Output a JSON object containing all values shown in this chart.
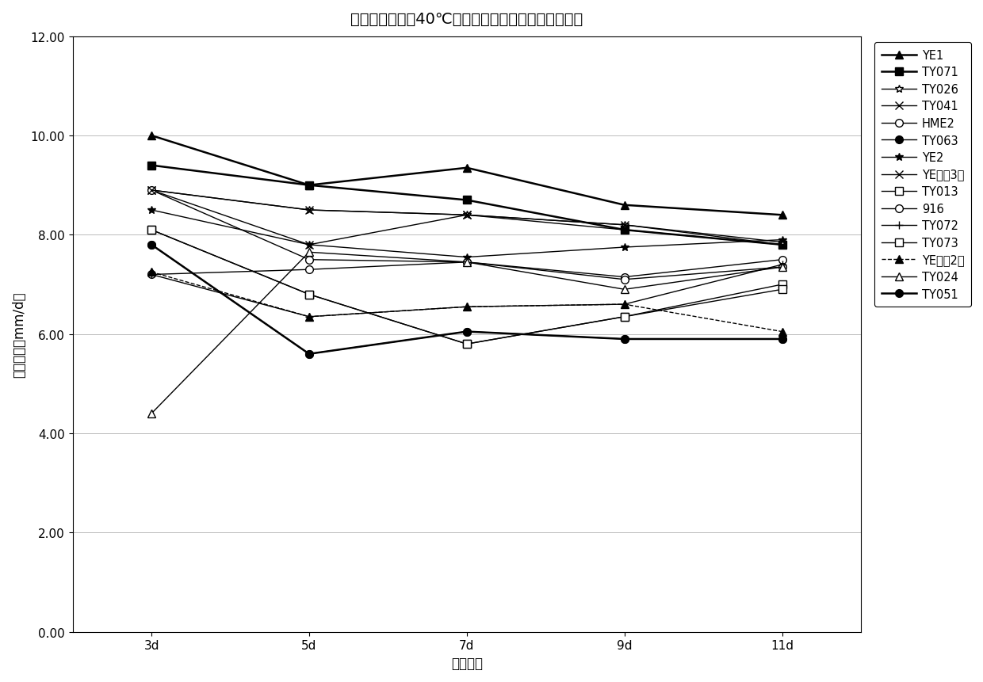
{
  "title": "不同云耳菌株在40℃下不同培养时间后恢复生长速度",
  "xlabel": "培养时间",
  "ylabel": "生长速度（mm/d）",
  "x_labels": [
    "3d",
    "5d",
    "7d",
    "9d",
    "11d"
  ],
  "x_values": [
    0,
    1,
    2,
    3,
    4
  ],
  "ylim": [
    0.0,
    12.0
  ],
  "yticks": [
    0.0,
    2.0,
    4.0,
    6.0,
    8.0,
    10.0,
    12.0
  ],
  "series": [
    {
      "name": "YE1",
      "values": [
        10.0,
        9.0,
        9.35,
        8.6,
        8.4
      ],
      "linestyle": "-",
      "marker": "^",
      "filled": true,
      "linewidth": 1.8
    },
    {
      "name": "TY071",
      "values": [
        9.4,
        9.0,
        8.7,
        8.1,
        7.8
      ],
      "linestyle": "-",
      "marker": "s",
      "filled": true,
      "linewidth": 1.8
    },
    {
      "name": "TY026",
      "values": [
        8.9,
        8.5,
        8.4,
        8.2,
        7.85
      ],
      "linestyle": "-",
      "marker": "*",
      "filled": false,
      "linewidth": 1.0
    },
    {
      "name": "TY041",
      "values": [
        8.9,
        7.8,
        8.4,
        8.2,
        7.8
      ],
      "linestyle": "-",
      "marker": "x",
      "filled": false,
      "linewidth": 1.0
    },
    {
      "name": "HME2",
      "values": [
        8.9,
        7.5,
        7.45,
        7.15,
        7.5
      ],
      "linestyle": "-",
      "marker": "o",
      "filled": false,
      "linewidth": 1.0
    },
    {
      "name": "TY063",
      "values": [
        7.8,
        5.6,
        6.05,
        5.9,
        5.9
      ],
      "linestyle": "-",
      "marker": "o",
      "filled": true,
      "linewidth": 1.0
    },
    {
      "name": "YE2",
      "values": [
        8.5,
        7.8,
        7.55,
        7.75,
        7.9
      ],
      "linestyle": "-",
      "marker": "*",
      "filled": true,
      "linewidth": 1.0
    },
    {
      "name": "YE（天3）",
      "values": [
        8.9,
        8.5,
        8.4,
        8.1,
        7.8
      ],
      "linestyle": "-",
      "marker": "x",
      "filled": false,
      "linewidth": 1.0
    },
    {
      "name": "TY013",
      "values": [
        8.1,
        6.8,
        5.8,
        6.35,
        7.0
      ],
      "linestyle": "-",
      "marker": "s",
      "filled": false,
      "linewidth": 1.0
    },
    {
      "name": "916",
      "values": [
        7.2,
        7.3,
        7.45,
        7.1,
        7.35
      ],
      "linestyle": "-",
      "marker": "o",
      "filled": false,
      "linewidth": 1.0
    },
    {
      "name": "TY072",
      "values": [
        7.2,
        6.35,
        6.55,
        6.6,
        7.4
      ],
      "linestyle": "-",
      "marker": "+",
      "filled": false,
      "linewidth": 1.0
    },
    {
      "name": "TY073",
      "values": [
        8.1,
        6.8,
        5.8,
        6.35,
        6.9
      ],
      "linestyle": "-",
      "marker": "s",
      "filled": false,
      "linewidth": 1.0
    },
    {
      "name": "YE（天2）",
      "values": [
        7.25,
        6.35,
        6.55,
        6.6,
        6.05
      ],
      "linestyle": "--",
      "marker": "^",
      "filled": true,
      "linewidth": 1.0
    },
    {
      "name": "TY024",
      "values": [
        4.4,
        7.65,
        7.45,
        6.9,
        7.35
      ],
      "linestyle": "-",
      "marker": "^",
      "filled": false,
      "linewidth": 1.0
    },
    {
      "name": "TY051",
      "values": [
        7.8,
        5.6,
        6.05,
        5.9,
        5.9
      ],
      "linestyle": "-",
      "marker": "o",
      "filled": true,
      "linewidth": 1.8
    }
  ],
  "background_color": "#ffffff",
  "grid_color": "#bbbbbb",
  "title_fontsize": 14,
  "label_fontsize": 12,
  "tick_fontsize": 11,
  "legend_fontsize": 10.5
}
